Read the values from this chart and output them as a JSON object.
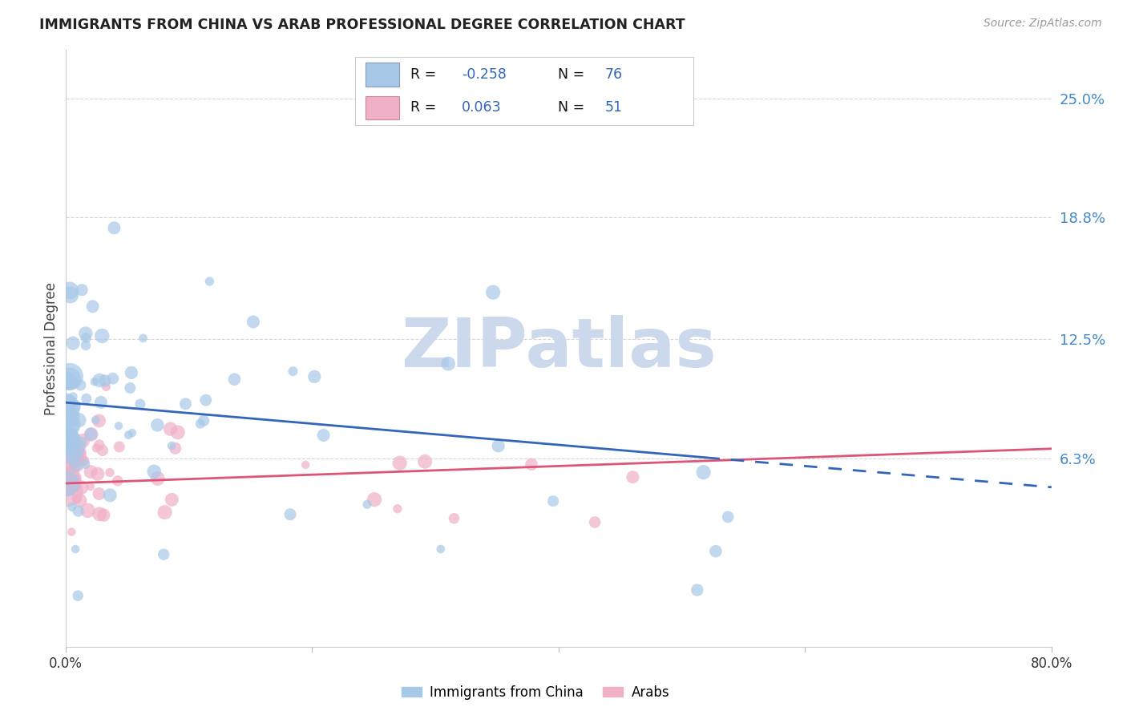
{
  "title": "IMMIGRANTS FROM CHINA VS ARAB PROFESSIONAL DEGREE CORRELATION CHART",
  "source": "Source: ZipAtlas.com",
  "ylabel": "Professional Degree",
  "ytick_labels": [
    "6.3%",
    "12.5%",
    "18.8%",
    "25.0%"
  ],
  "ytick_values": [
    0.063,
    0.125,
    0.188,
    0.25
  ],
  "xlim": [
    0.0,
    0.8
  ],
  "ylim": [
    -0.035,
    0.275
  ],
  "xtick_positions": [
    0.0,
    0.2,
    0.4,
    0.6,
    0.8
  ],
  "xtick_labels": [
    "0.0%",
    "",
    "",
    "",
    "80.0%"
  ],
  "legend_china_r": "-0.258",
  "legend_china_n": "76",
  "legend_arab_r": "0.063",
  "legend_arab_n": "51",
  "china_color": "#a8c8e8",
  "china_edge_color": "#88aacc",
  "arab_color": "#f0b0c8",
  "arab_edge_color": "#cc8899",
  "china_line_color": "#3366bb",
  "arab_line_color": "#dd5577",
  "legend_r_color": "#222222",
  "legend_val_color": "#3366bb",
  "legend_n_color": "#222222",
  "legend_n_val_color": "#3366bb",
  "ytick_color": "#4488cc",
  "watermark_color": "#ccd8ec",
  "background_color": "#ffffff",
  "grid_color": "#cccccc",
  "title_color": "#222222",
  "source_color": "#999999",
  "ylabel_color": "#444444",
  "china_line_solid_end": 0.52,
  "china_line_start_y": 0.092,
  "china_line_end_y": 0.048,
  "arab_line_start_y": 0.05,
  "arab_line_end_y": 0.068
}
